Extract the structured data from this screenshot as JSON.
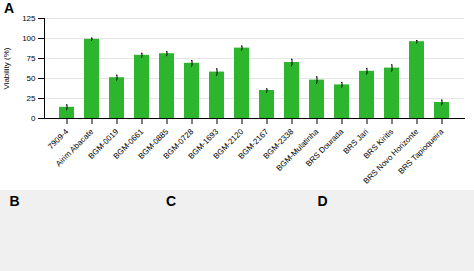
{
  "chart_data": {
    "type": "bar",
    "categories": [
      "7909-4",
      "Airim Abacate",
      "BGM-0019",
      "BGM-0661",
      "BGM-0885",
      "BGM-0728",
      "BGM-1693",
      "BGM-2120",
      "BGM-2167",
      "BGM-2338",
      "BGM-Mulatinha",
      "BRS Dourada",
      "BRS Jari",
      "BRS Kiritis",
      "BRS Novo Horizonte",
      "BRS Tapioqueira"
    ],
    "values": [
      14,
      99,
      51,
      79,
      81,
      69,
      58,
      88,
      35,
      70,
      48,
      42,
      59,
      63,
      96,
      20
    ],
    "errors": [
      3,
      1.5,
      3,
      2.5,
      2.5,
      3.5,
      4,
      2.5,
      2,
      4,
      4,
      3,
      3.5,
      4,
      1.5,
      3
    ],
    "color": "#2db52d",
    "ylabel": "Viability (%)",
    "ylim": [
      0,
      125
    ],
    "yticks": [
      0,
      25,
      50,
      75,
      100,
      125
    ],
    "grid": true,
    "annotations": [
      "A",
      "B",
      "C",
      "D"
    ]
  }
}
